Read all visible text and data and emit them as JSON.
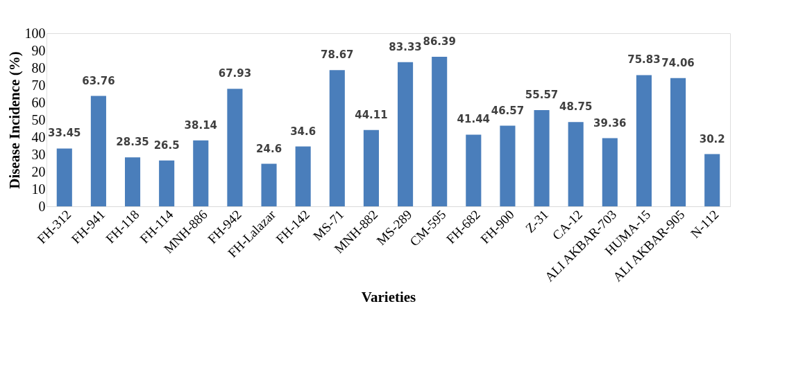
{
  "chart_data": {
    "type": "bar",
    "xlabel": "Varieties",
    "ylabel": "Disease Incidence (%)",
    "categories": [
      "FH-312",
      "FH-941",
      "FH-118",
      "FH-114",
      "MNH-886",
      "FH-942",
      "FH-Lalazar",
      "FH-142",
      "MS-71",
      "MNH-882",
      "MS-289",
      "CM-595",
      "FH-682",
      "FH-900",
      "Z-31",
      "CA-12",
      "ALI AKBAR-703",
      "HUMA-15",
      "ALI AKBAR-905",
      "N-112"
    ],
    "values": [
      33.45,
      63.76,
      28.35,
      26.5,
      38.14,
      67.93,
      24.6,
      34.6,
      78.67,
      44.11,
      83.33,
      86.39,
      41.44,
      46.57,
      55.57,
      48.75,
      39.36,
      75.83,
      74.06,
      30.2
    ],
    "color": "#4a7ebb",
    "ylim": [
      0,
      100
    ],
    "yticks": [
      0,
      10,
      20,
      30,
      40,
      50,
      60,
      70,
      80,
      90,
      100
    ],
    "grid": false,
    "data_labels": true
  }
}
